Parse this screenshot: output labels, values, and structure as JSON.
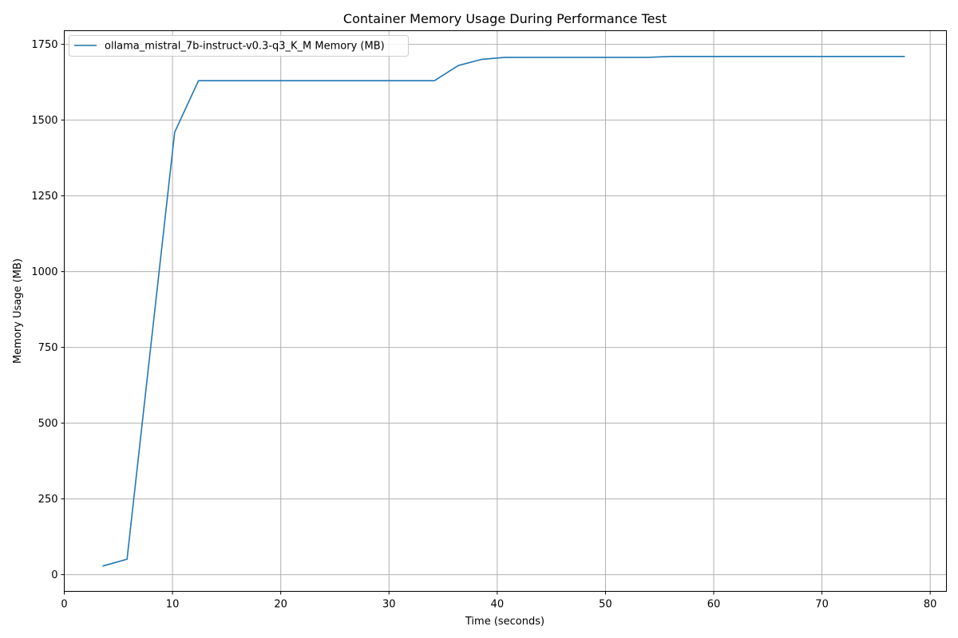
{
  "chart_data": {
    "type": "line",
    "title": "Container Memory Usage During Performance Test",
    "xlabel": "Time (seconds)",
    "ylabel": "Memory Usage (MB)",
    "xlim": [
      0,
      81.5
    ],
    "ylim": [
      -55,
      1795
    ],
    "xticks": [
      0,
      10,
      20,
      30,
      40,
      50,
      60,
      70,
      80
    ],
    "xtick_labels": [
      "0",
      "10",
      "20",
      "30",
      "40",
      "50",
      "60",
      "70",
      "80"
    ],
    "yticks": [
      0,
      250,
      500,
      750,
      1000,
      1250,
      1500,
      1750
    ],
    "ytick_labels": [
      "0",
      "250",
      "500",
      "750",
      "1000",
      "1250",
      "1500",
      "1750"
    ],
    "grid": true,
    "legend_position": "top-left",
    "series": [
      {
        "name": "ollama_mistral_7b-instruct-v0.3-q3_K_M Memory (MB)",
        "color": "#1f77b4",
        "x": [
          3.6,
          5.8,
          10.2,
          12.4,
          14.6,
          16.8,
          19.0,
          21.2,
          23.4,
          25.6,
          27.8,
          30.0,
          32.2,
          34.2,
          36.4,
          38.5,
          40.7,
          42.9,
          45.1,
          47.3,
          49.5,
          51.7,
          53.9,
          56.0,
          58.2,
          60.4,
          62.6,
          64.8,
          67.0,
          69.2,
          71.4,
          73.6,
          75.8,
          77.6
        ],
        "y": [
          29,
          51,
          1460,
          1630,
          1630,
          1630,
          1630,
          1630,
          1630,
          1630,
          1630,
          1630,
          1630,
          1630,
          1680,
          1700,
          1707,
          1707,
          1707,
          1707,
          1707,
          1707,
          1707,
          1710,
          1710,
          1710,
          1710,
          1710,
          1710,
          1710,
          1710,
          1710,
          1710,
          1710
        ]
      }
    ]
  }
}
